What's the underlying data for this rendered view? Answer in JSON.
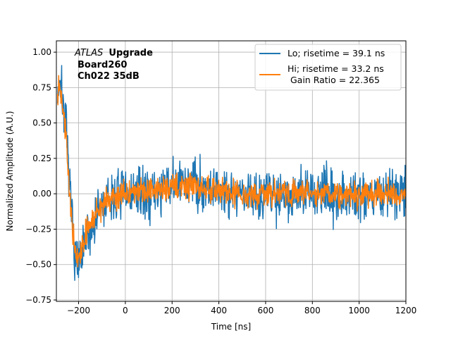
{
  "chart_data": {
    "type": "line",
    "title": "",
    "xlabel": "Time [ns]",
    "ylabel": "Normalized Amplitude (A.U.)",
    "xlim": [
      -295,
      1200
    ],
    "ylim": [
      -0.76,
      1.08
    ],
    "grid": true,
    "x_ticks": [
      -200,
      0,
      200,
      400,
      600,
      800,
      1000,
      1200
    ],
    "x_tick_labels": [
      "−200",
      "0",
      "200",
      "400",
      "600",
      "800",
      "1000",
      "1200"
    ],
    "y_ticks": [
      -0.75,
      -0.5,
      -0.25,
      0.0,
      0.25,
      0.5,
      0.75,
      1.0
    ],
    "y_tick_labels": [
      "−0.75",
      "−0.50",
      "−0.25",
      "0.00",
      "0.25",
      "0.50",
      "0.75",
      "1.00"
    ],
    "annotation": {
      "italic_part": "ATLAS",
      "bold_part": "Upgrade",
      "line2": "Board260",
      "line3": "Ch022 35dB"
    },
    "legend_position": "top-right",
    "series": [
      {
        "name": "Lo; risetime = 39.1 ns",
        "legend_line2": "",
        "color": "#1f77b4",
        "noise": 0.09,
        "seed": 7,
        "x": [
          -290,
          -280,
          -270,
          -260,
          -250,
          -240,
          -230,
          -220,
          -210,
          -200,
          -190,
          -180,
          -160,
          -140,
          -120,
          -100,
          -80,
          -50,
          -20,
          0,
          50,
          100,
          150,
          200,
          250,
          300,
          350,
          400,
          450,
          500,
          600,
          700,
          800,
          900,
          1000,
          1100,
          1200
        ],
        "y": [
          0.72,
          0.8,
          0.7,
          0.55,
          0.35,
          0.1,
          -0.15,
          -0.35,
          -0.48,
          -0.52,
          -0.48,
          -0.4,
          -0.3,
          -0.22,
          -0.15,
          -0.1,
          -0.07,
          -0.03,
          0.0,
          0.0,
          0.0,
          0.0,
          0.02,
          0.05,
          0.07,
          0.08,
          0.05,
          0.03,
          0.02,
          0.0,
          0.0,
          0.0,
          0.0,
          0.0,
          0.0,
          0.0,
          0.0
        ]
      },
      {
        "name": "Hi; risetime = 33.2 ns",
        "legend_line2": " Gain Ratio = 22.365",
        "color": "#ff7f0e",
        "noise": 0.045,
        "seed": 13,
        "x": [
          -290,
          -280,
          -270,
          -260,
          -250,
          -240,
          -230,
          -220,
          -210,
          -200,
          -190,
          -180,
          -160,
          -140,
          -120,
          -100,
          -80,
          -50,
          -20,
          0,
          50,
          100,
          150,
          200,
          250,
          300,
          350,
          400,
          450,
          500,
          600,
          700,
          800,
          900,
          1000,
          1100,
          1200
        ],
        "y": [
          0.75,
          0.78,
          0.68,
          0.52,
          0.3,
          0.05,
          -0.18,
          -0.36,
          -0.46,
          -0.46,
          -0.42,
          -0.34,
          -0.25,
          -0.18,
          -0.12,
          -0.08,
          -0.05,
          -0.02,
          0.0,
          0.0,
          0.01,
          0.02,
          0.03,
          0.05,
          0.06,
          0.06,
          0.04,
          0.02,
          0.01,
          0.0,
          0.0,
          0.0,
          0.0,
          0.0,
          0.0,
          0.0,
          0.0
        ]
      }
    ]
  }
}
